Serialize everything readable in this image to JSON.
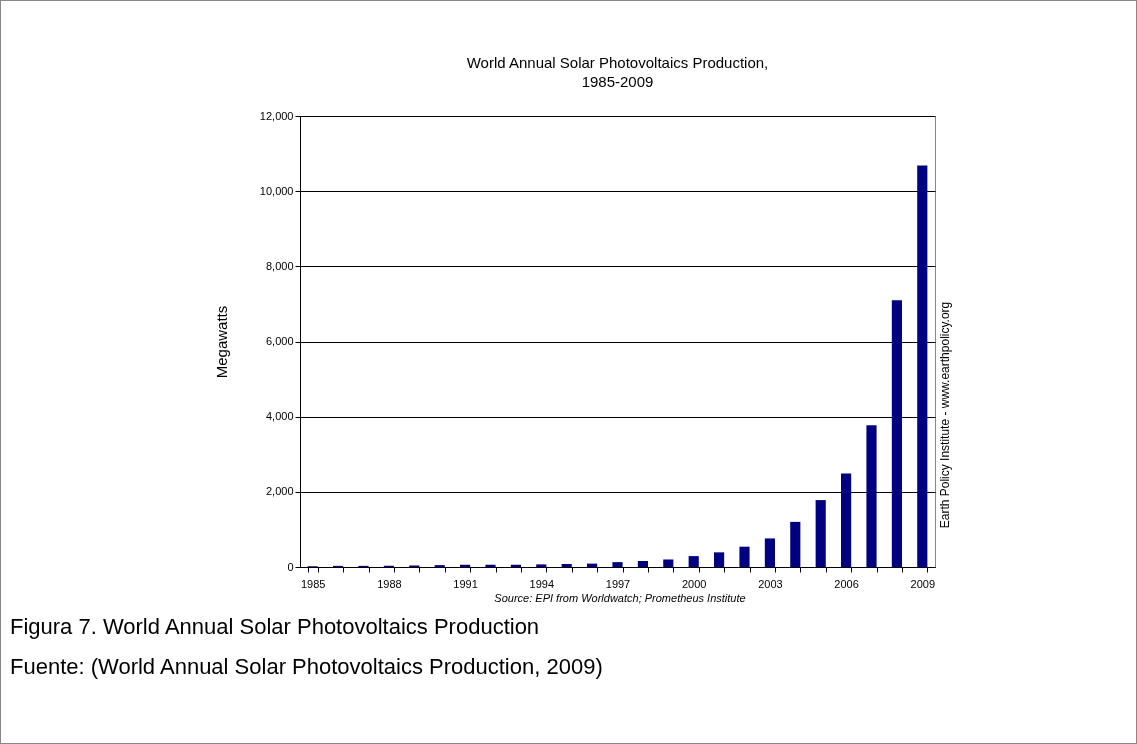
{
  "chart_data": {
    "type": "bar",
    "title": [
      "World Annual Solar Photovoltaics Production,",
      "1985-2009"
    ],
    "ylabel": "Megawatts",
    "categories": [
      "1985",
      null,
      null,
      "1988",
      null,
      null,
      "1991",
      null,
      null,
      "1994",
      null,
      null,
      "1997",
      null,
      null,
      "2000",
      null,
      null,
      "2003",
      null,
      null,
      "2006",
      null,
      null,
      "2009"
    ],
    "values": [
      20,
      30,
      30,
      30,
      40,
      50,
      60,
      60,
      60,
      70,
      80,
      90,
      130,
      160,
      200,
      290,
      390,
      540,
      760,
      1200,
      1780,
      2490,
      3770,
      7100,
      10680
    ],
    "color": "#000080",
    "ylim": [
      0,
      12000
    ],
    "yticks": [
      {
        "value": 0,
        "label": "0"
      },
      {
        "value": 2000,
        "label": "2,000"
      },
      {
        "value": 4000,
        "label": "4,000"
      },
      {
        "value": 6000,
        "label": "6,000"
      },
      {
        "value": 8000,
        "label": "8,000"
      },
      {
        "value": 10000,
        "label": "10,000"
      },
      {
        "value": 12000,
        "label": "12,000"
      }
    ],
    "grid": "y",
    "annotations": [
      "Earth Policy Institute - www.earthpolicy.org",
      "Source: EPI from Worldwatch; Prometheus Institute",
      "Figura 7. World Annual Solar Photovoltaics Production",
      "Fuente: (World Annual Solar Photovoltaics Production, 2009)"
    ]
  }
}
